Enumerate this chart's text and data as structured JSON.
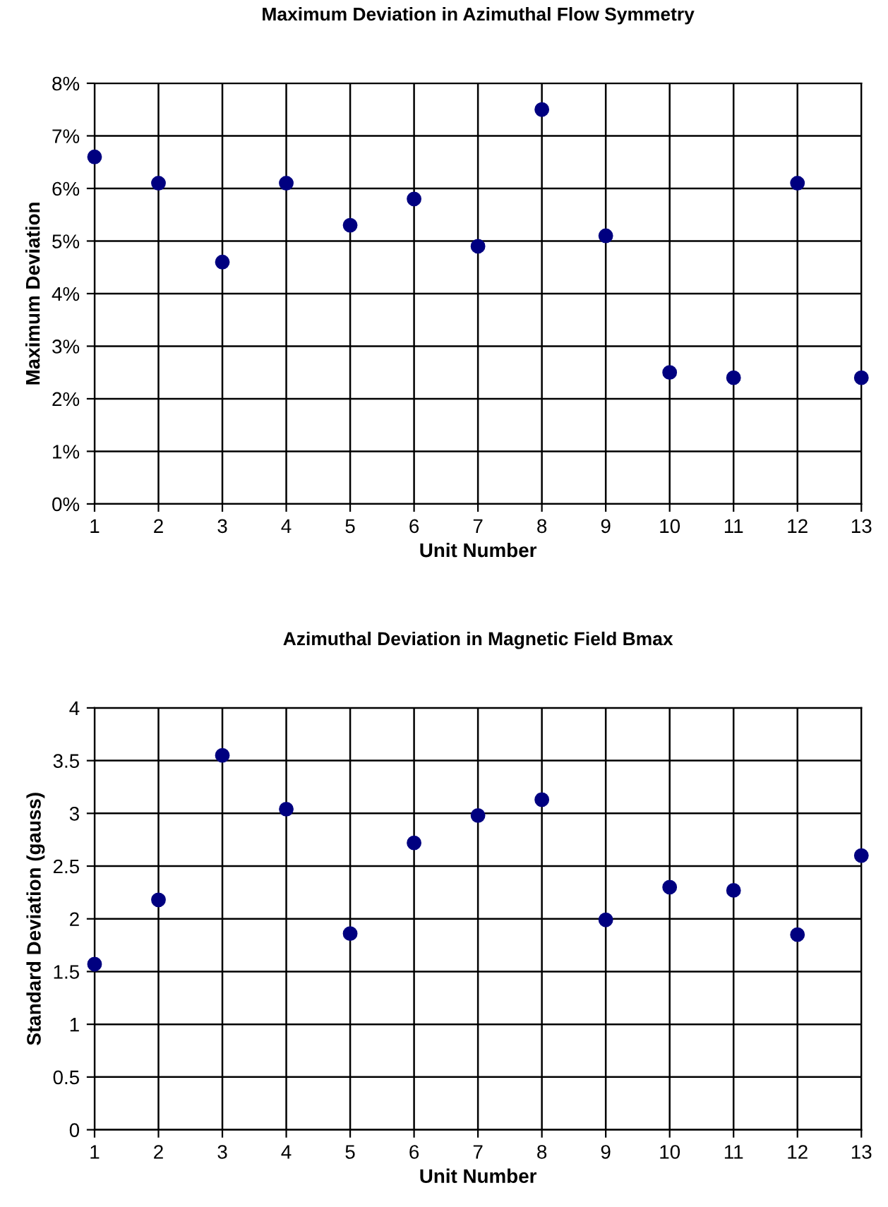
{
  "chart_data": [
    {
      "type": "scatter",
      "title": "Maximum Deviation in Azimuthal Flow Symmetry",
      "xlabel": "Unit Number",
      "ylabel": "Maximum Deviation",
      "x": [
        1,
        2,
        3,
        4,
        5,
        6,
        7,
        8,
        9,
        10,
        11,
        12,
        13
      ],
      "series": [
        {
          "color": "#000080",
          "values": [
            6.6,
            6.1,
            4.6,
            6.1,
            5.3,
            5.8,
            4.9,
            7.5,
            5.1,
            2.5,
            2.4,
            6.1,
            2.4
          ]
        }
      ],
      "xlim": [
        1,
        13
      ],
      "xticks": [
        1,
        2,
        3,
        4,
        5,
        6,
        7,
        8,
        9,
        10,
        11,
        12,
        13
      ],
      "ylim": [
        0,
        8
      ],
      "yticks": [
        {
          "value": 0,
          "label": "0%"
        },
        {
          "value": 1,
          "label": "1%"
        },
        {
          "value": 2,
          "label": "2%"
        },
        {
          "value": 3,
          "label": "3%"
        },
        {
          "value": 4,
          "label": "4%"
        },
        {
          "value": 5,
          "label": "5%"
        },
        {
          "value": 6,
          "label": "6%"
        },
        {
          "value": 7,
          "label": "7%"
        },
        {
          "value": 8,
          "label": "8%"
        }
      ],
      "grid": true,
      "marker": "circle"
    },
    {
      "type": "scatter",
      "title": "Azimuthal Deviation in Magnetic Field Bmax",
      "xlabel": "Unit Number",
      "ylabel": "Standard Deviation (gauss)",
      "x": [
        1,
        2,
        3,
        4,
        5,
        6,
        7,
        8,
        9,
        10,
        11,
        12,
        13
      ],
      "series": [
        {
          "color": "#000080",
          "values": [
            1.57,
            2.18,
            3.55,
            3.04,
            1.86,
            2.72,
            2.98,
            3.13,
            1.99,
            2.3,
            2.27,
            1.85,
            2.6
          ]
        }
      ],
      "xlim": [
        1,
        13
      ],
      "xticks": [
        1,
        2,
        3,
        4,
        5,
        6,
        7,
        8,
        9,
        10,
        11,
        12,
        13
      ],
      "ylim": [
        0,
        4
      ],
      "yticks": [
        0,
        0.5,
        1,
        1.5,
        2,
        2.5,
        3,
        3.5,
        4
      ],
      "grid": true,
      "marker": "circle"
    }
  ]
}
